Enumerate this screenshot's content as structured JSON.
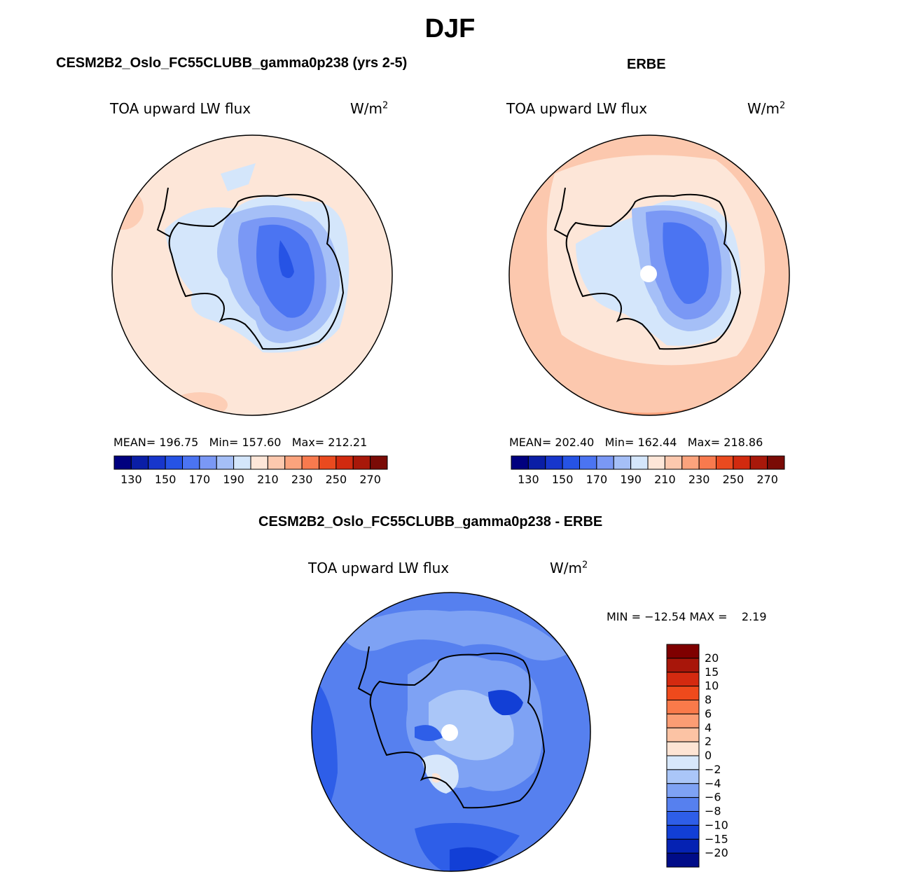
{
  "figure": {
    "title": "DJF",
    "units": "W/m",
    "units_sup": "2"
  },
  "panels": {
    "model": {
      "title": "CESM2B2_Oslo_FC55CLUBB_gamma0p238 (yrs 2-5)",
      "variable": "TOA upward LW flux",
      "mean_label": "MEAN=",
      "mean": "196.75",
      "min_label": "Min=",
      "min": "157.60",
      "max_label": "Max=",
      "max": "212.21"
    },
    "obs": {
      "title": "ERBE",
      "variable": "TOA upward LW flux",
      "mean_label": "MEAN=",
      "mean": "202.40",
      "min_label": "Min=",
      "min": "162.44",
      "max_label": "Max=",
      "max": "218.86"
    },
    "diff": {
      "title": "CESM2B2_Oslo_FC55CLUBB_gamma0p238 - ERBE",
      "variable": "TOA upward LW flux",
      "minmax_text": "MIN = −12.54 MAX =    2.19"
    }
  },
  "colorbar_abs": {
    "colors": [
      "#00007f",
      "#0a1ea6",
      "#1736cc",
      "#2653e5",
      "#4b74f2",
      "#7a98f5",
      "#a5bff7",
      "#d4e6fb",
      "#fde6d8",
      "#fcc8ae",
      "#fba37d",
      "#f87a4e",
      "#ea4a1f",
      "#d12a0f",
      "#a8180a",
      "#7a0b06"
    ],
    "tick_labels": [
      "130",
      "150",
      "170",
      "190",
      "210",
      "230",
      "250",
      "270"
    ]
  },
  "colorbar_diff": {
    "colors": [
      "#7f0000",
      "#a8160a",
      "#d42a10",
      "#ef4a1c",
      "#f97a4a",
      "#fb9d74",
      "#fcc3a4",
      "#fde4d4",
      "#d7e7fb",
      "#aac6f8",
      "#7ea2f4",
      "#5680ef",
      "#2e5ee8",
      "#123fd6",
      "#0522b3",
      "#000c88"
    ],
    "tick_labels": [
      "20",
      "15",
      "10",
      "8",
      "6",
      "4",
      "2",
      "0",
      "−2",
      "−4",
      "−6",
      "−8",
      "−10",
      "−15",
      "−20"
    ]
  },
  "chart_data": [
    {
      "type": "map",
      "title": "CESM2B2_Oslo_FC55CLUBB_gamma0p238 (yrs 2-5)",
      "variable": "TOA upward LW flux",
      "units": "W/m2",
      "projection": "south polar stereographic",
      "mean": 196.75,
      "min": 157.6,
      "max": 212.21,
      "contour_levels": [
        130,
        140,
        150,
        160,
        170,
        180,
        190,
        200,
        210,
        220,
        230,
        240,
        250,
        260,
        270
      ]
    },
    {
      "type": "map",
      "title": "ERBE",
      "variable": "TOA upward LW flux",
      "units": "W/m2",
      "projection": "south polar stereographic",
      "mean": 202.4,
      "min": 162.44,
      "max": 218.86,
      "contour_levels": [
        130,
        140,
        150,
        160,
        170,
        180,
        190,
        200,
        210,
        220,
        230,
        240,
        250,
        260,
        270
      ]
    },
    {
      "type": "map",
      "title": "CESM2B2_Oslo_FC55CLUBB_gamma0p238 - ERBE",
      "variable": "TOA upward LW flux",
      "units": "W/m2",
      "projection": "south polar stereographic",
      "min": -12.54,
      "max": 2.19,
      "contour_levels": [
        -20,
        -15,
        -10,
        -8,
        -6,
        -4,
        -2,
        0,
        2,
        4,
        6,
        8,
        10,
        15,
        20
      ]
    }
  ]
}
